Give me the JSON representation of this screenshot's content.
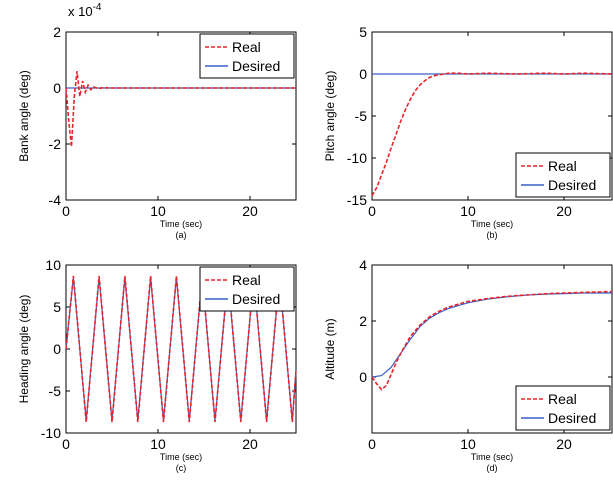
{
  "colors": {
    "real": "#e8232b",
    "desired": "#3a5fc6"
  },
  "chart_data": [
    {
      "id": "a",
      "type": "line",
      "caption": "(a)",
      "xlabel": "Time (sec)",
      "ylabel": "Bank angle (deg)",
      "scale_note": "x 10^-4",
      "xlim": [
        0,
        25
      ],
      "ylim": [
        -4,
        2
      ],
      "xticks": [
        0,
        10,
        20
      ],
      "yticks": [
        -4,
        -2,
        0,
        2
      ],
      "legend": "top-right",
      "series": [
        {
          "name": "Real",
          "style": "dashed",
          "x": [
            0,
            0.3,
            0.6,
            0.9,
            1.2,
            1.5,
            1.8,
            2.1,
            2.4,
            2.7,
            3.0,
            3.5,
            4,
            5,
            7,
            10,
            15,
            20,
            25
          ],
          "y": [
            0,
            -1.2,
            -2.1,
            -0.3,
            0.6,
            -0.3,
            0.25,
            -0.15,
            0.1,
            -0.06,
            0.04,
            -0.02,
            0.01,
            0,
            0,
            0,
            0,
            0,
            0
          ]
        },
        {
          "name": "Desired",
          "style": "solid",
          "x": [
            0,
            25
          ],
          "y": [
            0,
            0
          ]
        }
      ]
    },
    {
      "id": "b",
      "type": "line",
      "caption": "(b)",
      "xlabel": "Time (sec)",
      "ylabel": "Pitch angle (deg)",
      "xlim": [
        0,
        25
      ],
      "ylim": [
        -15,
        5
      ],
      "xticks": [
        0,
        10,
        20
      ],
      "yticks": [
        -15,
        -10,
        -5,
        0,
        5
      ],
      "legend": "bottom-right",
      "series": [
        {
          "name": "Real",
          "style": "dashed",
          "x": [
            0,
            0.5,
            1,
            1.5,
            2,
            2.5,
            3,
            3.5,
            4,
            4.5,
            5,
            5.5,
            6,
            6.5,
            7,
            8,
            9,
            10,
            12,
            15,
            18,
            20,
            22,
            25
          ],
          "y": [
            -14.5,
            -13.5,
            -12,
            -10.5,
            -8.8,
            -7.2,
            -5.6,
            -4.2,
            -3.0,
            -2.0,
            -1.3,
            -0.8,
            -0.4,
            -0.2,
            -0.1,
            0.1,
            0.1,
            0,
            0.1,
            0,
            0.1,
            0,
            0.1,
            0
          ]
        },
        {
          "name": "Desired",
          "style": "solid",
          "x": [
            0,
            25
          ],
          "y": [
            0,
            0
          ]
        }
      ]
    },
    {
      "id": "c",
      "type": "line",
      "caption": "(c)",
      "xlabel": "Time (sec)",
      "ylabel": "Heading angle (deg)",
      "xlim": [
        0,
        25
      ],
      "ylim": [
        -10,
        10
      ],
      "xticks": [
        0,
        10,
        20
      ],
      "yticks": [
        -10,
        -5,
        0,
        5,
        10
      ],
      "legend": "top-right",
      "series": [
        {
          "name": "Real",
          "style": "dashed",
          "x": [
            0,
            0.8,
            2.2,
            3.6,
            5.0,
            6.4,
            7.8,
            9.2,
            10.6,
            12.0,
            13.4,
            14.8,
            16.2,
            17.6,
            19.0,
            20.4,
            21.8,
            23.2,
            24.6,
            25
          ],
          "y": [
            0,
            8.7,
            -8.7,
            8.7,
            -8.7,
            8.7,
            -8.7,
            8.7,
            -8.7,
            8.7,
            -8.7,
            8.7,
            -8.7,
            8.7,
            -8.7,
            8.7,
            -8.7,
            8.7,
            -8.7,
            -2.5
          ]
        },
        {
          "name": "Desired",
          "style": "solid",
          "x": [
            0,
            0.8,
            2.2,
            3.6,
            5.0,
            6.4,
            7.8,
            9.2,
            10.6,
            12.0,
            13.4,
            14.8,
            16.2,
            17.6,
            19.0,
            20.4,
            21.8,
            23.2,
            24.6,
            25
          ],
          "y": [
            0,
            8.5,
            -8.5,
            8.5,
            -8.5,
            8.5,
            -8.5,
            8.5,
            -8.5,
            8.5,
            -8.5,
            8.5,
            -8.5,
            8.5,
            -8.5,
            8.5,
            -8.5,
            8.5,
            -8.5,
            -2.5
          ]
        }
      ]
    },
    {
      "id": "d",
      "type": "line",
      "caption": "(d)",
      "xlabel": "Time (sec)",
      "ylabel": "Altitude (m)",
      "xlim": [
        0,
        25
      ],
      "ylim": [
        -2,
        4
      ],
      "xticks": [
        0,
        10,
        20
      ],
      "yticks": [
        0,
        2,
        4
      ],
      "legend": "bottom-right",
      "series": [
        {
          "name": "Real",
          "style": "dashed",
          "x": [
            0,
            0.5,
            1.0,
            1.5,
            2,
            2.5,
            3,
            3.5,
            4,
            5,
            6,
            7,
            8,
            9,
            10,
            12,
            14,
            16,
            18,
            20,
            22,
            25
          ],
          "y": [
            0,
            -0.25,
            -0.45,
            -0.3,
            0.1,
            0.5,
            0.85,
            1.15,
            1.45,
            1.85,
            2.15,
            2.35,
            2.5,
            2.6,
            2.7,
            2.8,
            2.88,
            2.93,
            2.97,
            3.0,
            3.02,
            3.05
          ]
        },
        {
          "name": "Desired",
          "style": "solid",
          "x": [
            0,
            1,
            2,
            3,
            4,
            5,
            6,
            7,
            8,
            9,
            10,
            12,
            14,
            16,
            18,
            20,
            22,
            25
          ],
          "y": [
            0,
            0.05,
            0.35,
            0.85,
            1.35,
            1.8,
            2.1,
            2.3,
            2.45,
            2.55,
            2.65,
            2.78,
            2.86,
            2.92,
            2.96,
            2.98,
            3.0,
            3.0
          ]
        }
      ]
    }
  ]
}
